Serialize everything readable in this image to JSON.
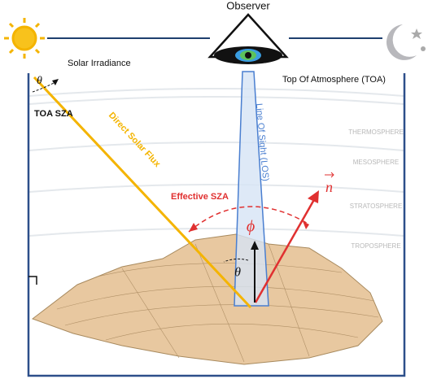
{
  "labels": {
    "observer": "Observer",
    "solar_irradiance": "Solar Irradiance",
    "toa": "Top Of Atmosphere (TOA)",
    "toa_theta": "θ",
    "toa_sza": "TOA SZA",
    "direct_solar_flux": "Direct Solar Flux",
    "line_of_sight": "Line Of Sight (LOS)",
    "effective_sza": "Effective SZA",
    "normal": "n",
    "phi": "ϕ",
    "theta": "θ"
  },
  "layers": [
    "THERMOSPHERE",
    "MESOSPHERE",
    "STRATOSPHERE",
    "TROPOSPHERE"
  ]
}
